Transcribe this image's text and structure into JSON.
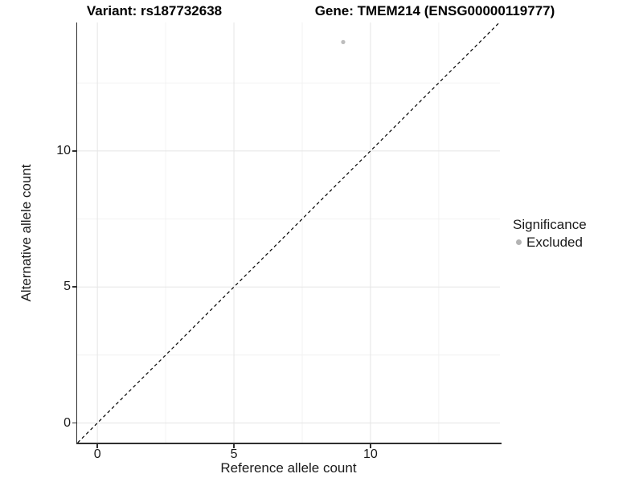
{
  "titles": {
    "variant": "Variant: rs187732638",
    "gene": "Gene: TMEM214 (ENSG00000119777)"
  },
  "axes": {
    "x": {
      "label": "Reference allele count",
      "tick_labels": [
        "0",
        "5",
        "10"
      ]
    },
    "y": {
      "label": "Alternative allele count",
      "tick_labels": [
        "0",
        "5",
        "10"
      ]
    }
  },
  "legend": {
    "title": "Significance",
    "items": [
      {
        "label": "Excluded",
        "color": "#b3b3b3",
        "marker": "circle-icon"
      }
    ]
  },
  "colors": {
    "background": "#ffffff",
    "axis_line": "#2f2f2f",
    "grid_major": "#e5e5e5",
    "grid_minor": "#f2f2f2",
    "title_text": "#000000",
    "axis_text": "#1a1a1a",
    "point": "#bdbdbd",
    "reference_line": "#000000"
  },
  "chart_data": {
    "type": "scatter",
    "title": "Variant: rs187732638 | Gene: TMEM214 (ENSG00000119777)",
    "xlabel": "Reference allele count",
    "ylabel": "Alternative allele count",
    "xlim": [
      -0.74,
      14.74
    ],
    "ylim": [
      -0.72,
      14.72
    ],
    "x_major_ticks": [
      0,
      5,
      10
    ],
    "y_major_ticks": [
      0,
      5,
      10
    ],
    "x_minor_ticks": [
      2.5,
      7.5,
      12.5
    ],
    "y_minor_ticks": [
      2.5,
      7.5,
      12.5
    ],
    "grid": "major and minor gridlines on white background",
    "legend_position": "right",
    "series": [
      {
        "name": "Excluded",
        "color": "#bdbdbd",
        "marker": "circle",
        "points": [
          {
            "x": 9,
            "y": 14
          }
        ]
      }
    ],
    "annotations": [
      {
        "type": "reference-line",
        "equation": "y = x",
        "style": "dashed",
        "color": "#000000"
      }
    ]
  }
}
